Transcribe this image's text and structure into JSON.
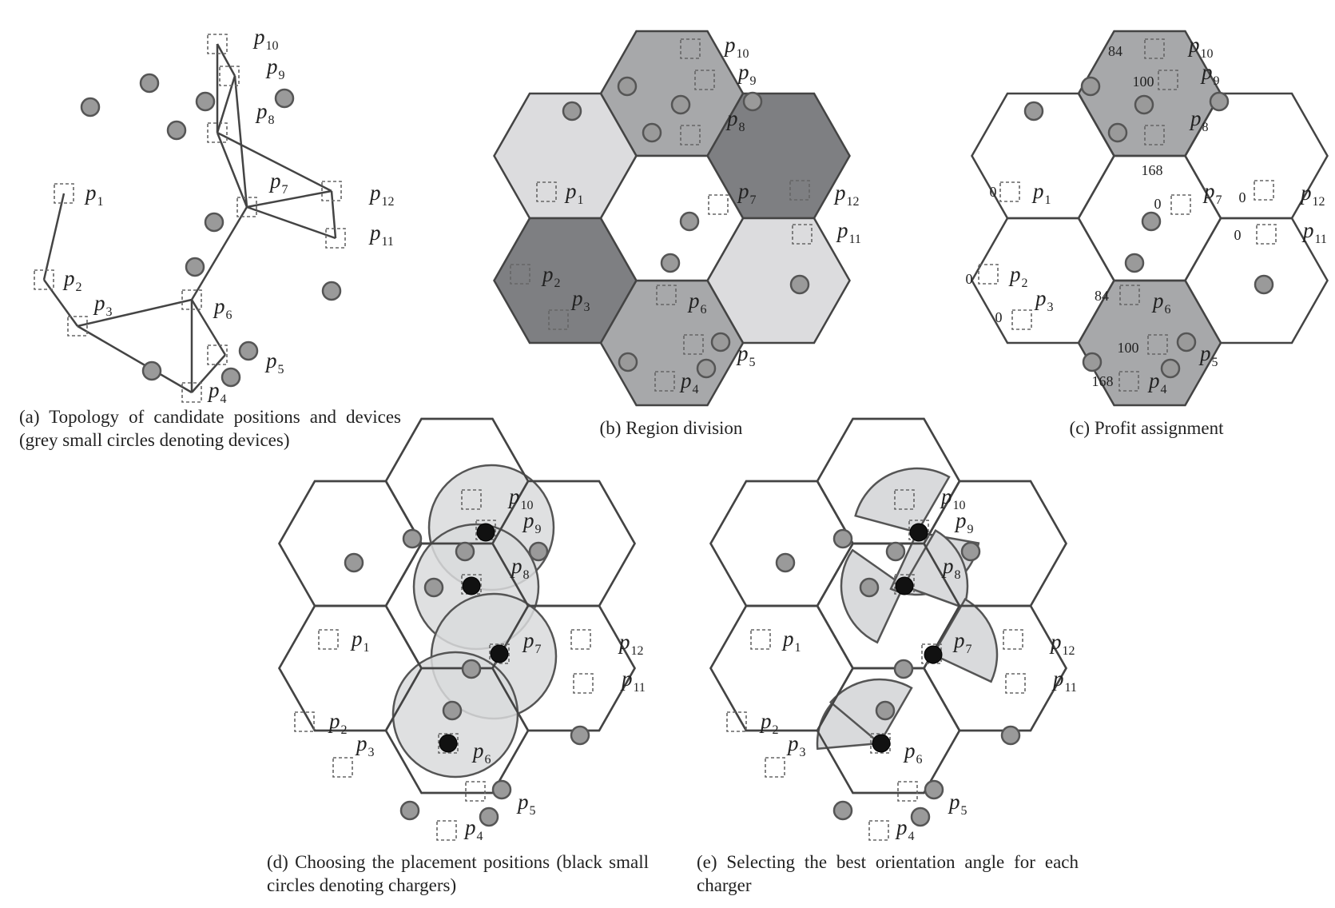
{
  "colors": {
    "device_fill": "#9a9a9a",
    "device_stroke": "#555555",
    "line": "#444444",
    "charger_fill": "#111111",
    "region_light": "#dcdcde",
    "region_medium": "#a7a8aa",
    "region_dark": "#7e7f82",
    "coverage_fill": "#d9dadc"
  },
  "position_labels": {
    "p1": {
      "letter": "p",
      "sub": "1"
    },
    "p2": {
      "letter": "p",
      "sub": "2"
    },
    "p3": {
      "letter": "p",
      "sub": "3"
    },
    "p4": {
      "letter": "p",
      "sub": "4"
    },
    "p5": {
      "letter": "p",
      "sub": "5"
    },
    "p6": {
      "letter": "p",
      "sub": "6"
    },
    "p7": {
      "letter": "p",
      "sub": "7"
    },
    "p8": {
      "letter": "p",
      "sub": "8"
    },
    "p9": {
      "letter": "p",
      "sub": "9"
    },
    "p10": {
      "letter": "p",
      "sub": "10"
    },
    "p11": {
      "letter": "p",
      "sub": "11"
    },
    "p12": {
      "letter": "p",
      "sub": "12"
    }
  },
  "profit_values": [
    "84",
    "100",
    "168",
    "0",
    "0",
    "0",
    "0",
    "0",
    "0",
    "84",
    "100",
    "168"
  ],
  "captions": {
    "a": "(a) Topology of candidate positions and devices (grey small circles denoting devices)",
    "b": "(b) Region division",
    "c": "(c) Profit assignment",
    "d": "(d) Choosing the placement positions (black small circles denoting chargers)",
    "e": "(e) Selecting the best orientation angle for each charger"
  }
}
